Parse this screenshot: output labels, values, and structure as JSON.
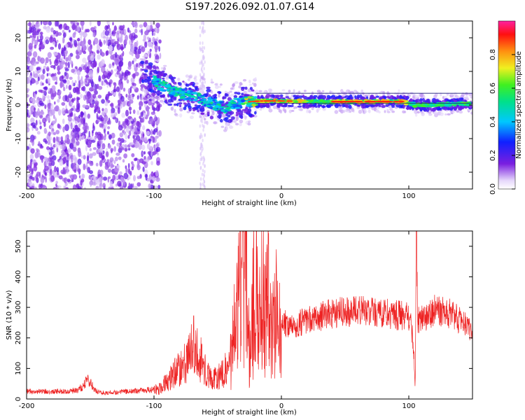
{
  "title": "S197.2026.092.01.07.G14",
  "colors": {
    "snr_line": "#ee2222",
    "spectral_low": "#7a1fe0",
    "spectral_high": "#ee1111"
  },
  "chart_data": [
    {
      "type": "heatmap",
      "name": "spectrogram",
      "xlabel": "Height of straight line (km)",
      "ylabel": "Frequency (Hz)",
      "xlim": [
        -200,
        150
      ],
      "ylim": [
        -25,
        25
      ],
      "xticks": [
        -200,
        -100,
        0,
        100
      ],
      "xtick_labels": [
        "-200",
        "-100",
        "0",
        "100"
      ],
      "yticks": [
        -20,
        -10,
        0,
        10,
        20
      ],
      "ytick_labels": [
        "-20",
        "-10",
        "0",
        "10",
        "20"
      ],
      "colorbar": {
        "label": "Normalized spectral amplitude",
        "range": [
          0.0,
          1.0
        ],
        "ticks": [
          0.0,
          0.2,
          0.4,
          0.6,
          0.8
        ],
        "tick_labels": [
          "0.0",
          "0.2",
          "0.4",
          "0.6",
          "0.8"
        ],
        "colormap": "rainbow"
      },
      "ridge": {
        "x": [
          -105,
          -95,
          -85,
          -75,
          -65,
          -55,
          -45,
          -35,
          -25,
          -15,
          0,
          20,
          50,
          80,
          95,
          105,
          120,
          150
        ],
        "y": [
          9,
          6,
          4,
          3,
          2,
          0.5,
          -1,
          0.5,
          1,
          1.2,
          1.2,
          1,
          1,
          1,
          1,
          0,
          0,
          0.5
        ]
      },
      "noise_region_x": [
        -200,
        -95
      ]
    },
    {
      "type": "line",
      "name": "snr",
      "xlabel": "Height of straight line (km)",
      "ylabel": "SNR (10 * v/v)",
      "xlim": [
        -200,
        150
      ],
      "ylim": [
        0,
        550
      ],
      "xticks": [
        -200,
        -100,
        0,
        100
      ],
      "xtick_labels": [
        "-200",
        "-100",
        "0",
        "100"
      ],
      "yticks": [
        0,
        100,
        200,
        300,
        400,
        500
      ],
      "ytick_labels": [
        "0",
        "100",
        "200",
        "300",
        "400",
        "500"
      ],
      "series": [
        {
          "x": [
            -200,
            -190,
            -180,
            -170,
            -160,
            -155,
            -152,
            -148,
            -145,
            -140,
            -130,
            -120,
            -110,
            -100,
            -95,
            -90,
            -85,
            -80,
            -75,
            -70,
            -68,
            -65,
            -62,
            -60,
            -55,
            -50,
            -45,
            -40,
            -38,
            -35,
            -30,
            -25,
            -22,
            -20,
            -18,
            -15,
            -13,
            -10,
            -8,
            -5,
            -2,
            0,
            10,
            20,
            30,
            40,
            50,
            60,
            70,
            80,
            90,
            98,
            100,
            102,
            104,
            105,
            106,
            107,
            110,
            120,
            130,
            140,
            150
          ],
          "y": [
            25,
            25,
            25,
            25,
            28,
            45,
            65,
            40,
            25,
            20,
            22,
            25,
            28,
            30,
            35,
            60,
            80,
            100,
            120,
            160,
            180,
            140,
            120,
            100,
            60,
            70,
            90,
            120,
            200,
            250,
            530,
            150,
            300,
            450,
            200,
            350,
            250,
            400,
            200,
            300,
            250,
            250,
            240,
            260,
            270,
            280,
            285,
            290,
            285,
            280,
            275,
            270,
            260,
            240,
            150,
            25,
            560,
            260,
            260,
            290,
            285,
            260,
            220
          ]
        }
      ]
    }
  ]
}
